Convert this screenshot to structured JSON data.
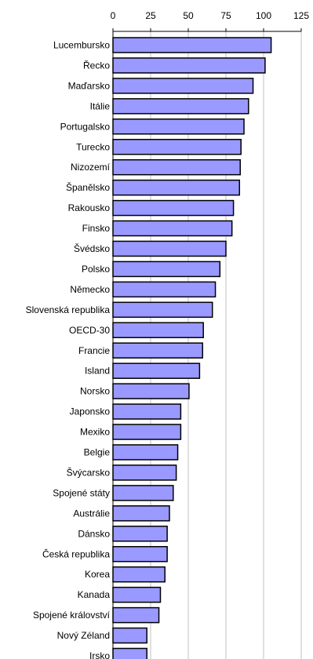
{
  "chart_data": {
    "type": "bar",
    "orientation": "horizontal",
    "axis_position": "top",
    "xlim": [
      0,
      125
    ],
    "ticks": [
      0,
      25,
      50,
      75,
      100,
      125
    ],
    "tick_labels": [
      "0",
      "25",
      "50",
      "75",
      "100",
      "125"
    ],
    "grid": true,
    "legend": "none",
    "colors": {
      "bar_fill": "#9999ff",
      "bar_stroke": "#000000",
      "grid": "#c0c0c0",
      "axis": "#000000"
    },
    "categories": [
      "Lucembursko",
      "Řecko",
      "Maďarsko",
      "Itálie",
      "Portugalsko",
      "Turecko",
      "Nizozemí",
      "Španělsko",
      "Rakousko",
      "Finsko",
      "Švédsko",
      "Polsko",
      "Německo",
      "Slovenská republika",
      "OECD-30",
      "Francie",
      "Island",
      "Norsko",
      "Japonsko",
      "Mexiko",
      "Belgie",
      "Švýcarsko",
      "Spojené státy",
      "Austrálie",
      "Dánsko",
      "Česká republika",
      "Korea",
      "Kanada",
      "Spojené království",
      "Nový Zéland",
      "Irsko"
    ],
    "values": [
      105,
      101,
      93,
      90,
      87,
      85,
      84.5,
      84,
      80,
      79,
      75,
      71,
      68,
      66,
      60,
      59.5,
      57.5,
      50.5,
      45,
      45,
      43,
      42,
      40,
      37.5,
      36,
      36,
      34.5,
      31.5,
      30.5,
      22.5,
      22.5
    ]
  }
}
